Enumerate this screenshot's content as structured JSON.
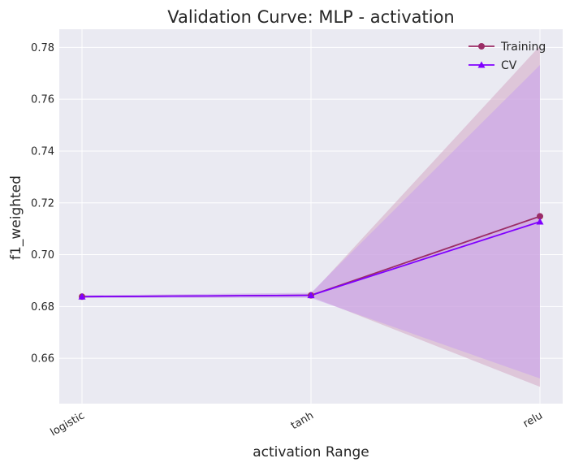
{
  "chart_data": {
    "type": "line",
    "title": "Validation Curve: MLP - activation",
    "xlabel": "activation Range",
    "ylabel": "f1_weighted",
    "categories": [
      "logistic",
      "tanh",
      "relu"
    ],
    "ylim": [
      0.6425,
      0.787
    ],
    "yticks": [
      "0.66",
      "0.68",
      "0.70",
      "0.72",
      "0.74",
      "0.76",
      "0.78"
    ],
    "grid": true,
    "legend_position": "top-right",
    "series": [
      {
        "name": "Training",
        "marker": "circle",
        "color": "#9b2d66",
        "band_color": "#d4a8c4",
        "values": [
          0.6838,
          0.6843,
          0.7148
        ],
        "band_lower": [
          0.6835,
          0.6838,
          0.649
        ],
        "band_upper": [
          0.6841,
          0.6848,
          0.7806
        ]
      },
      {
        "name": "CV",
        "marker": "triangle",
        "color": "#8000ff",
        "band_color": "#c8a0ec",
        "values": [
          0.6838,
          0.6843,
          0.7127
        ],
        "band_lower": [
          0.6833,
          0.6833,
          0.6522
        ],
        "band_upper": [
          0.6843,
          0.6853,
          0.7732
        ]
      }
    ]
  }
}
